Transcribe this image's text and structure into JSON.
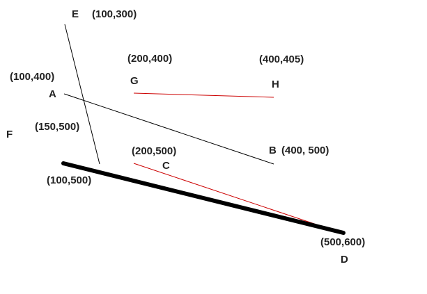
{
  "colors": {
    "background": "#ffffff",
    "text": "#222222",
    "black_line": "#000000",
    "red_line": "#cc0000"
  },
  "points": {
    "A": "A",
    "B": "B",
    "C": "C",
    "D": "D",
    "E": "E",
    "F": "F",
    "G": "G",
    "H": "H"
  },
  "coords": {
    "E": "(100,300)",
    "G": "(200,400)",
    "H": "(400,405)",
    "A": "(100,400)",
    "F": "(150,500)",
    "C": "(200,500)",
    "B": "(400, 500)",
    "start": "(100,500)",
    "D": "(500,600)"
  },
  "segments": [
    {
      "name": "segment-a-b",
      "from": "A",
      "to": "B",
      "color": "black",
      "weight": "thin"
    },
    {
      "name": "segment-e-f",
      "from": "E",
      "to": "F",
      "color": "black",
      "weight": "thin"
    },
    {
      "name": "segment-g-h",
      "from": "G",
      "to": "H",
      "color": "red",
      "weight": "thin"
    },
    {
      "name": "segment-c-d",
      "from": "C",
      "to": "D",
      "color": "red",
      "weight": "thin"
    },
    {
      "name": "segment-start-d",
      "from": "(100,500)",
      "to": "D",
      "color": "black",
      "weight": "thick"
    }
  ]
}
